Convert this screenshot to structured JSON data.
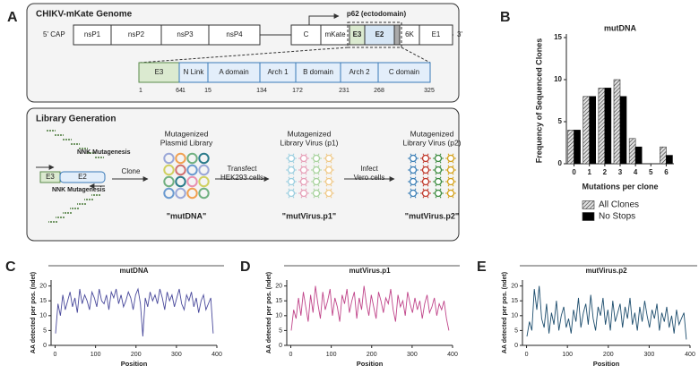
{
  "panel_labels": [
    "A"
  ],
  "genome": {
    "title": "CHIKV-mKate Genome",
    "region": "p62 (ectodomain)",
    "cap": "5' CAP",
    "end": "3'",
    "genes": [
      "nsP1",
      "nsP2",
      "nsP3",
      "nsP4",
      "C",
      "mKate",
      "E3",
      "E2",
      "6K",
      "E1"
    ]
  },
  "domains": {
    "labels": [
      "E3",
      "N Link",
      "A domain",
      "Arch 1",
      "B domain",
      "Arch 2",
      "C domain"
    ],
    "positions": [
      1,
      64,
      1,
      15,
      134,
      172,
      231,
      268,
      325
    ]
  },
  "library": {
    "title": "Library Generation",
    "primer_top": "NNK Mutagenesis",
    "primer_bottom": "NNK Mutagenesis",
    "segments": [
      "E3",
      "E2"
    ],
    "steps": [
      [
        "Clone"
      ],
      [
        "Transfect",
        "HEK293 cells"
      ],
      [
        "Infect",
        "Vero cells"
      ]
    ],
    "libraries": [
      {
        "title": [
          "Mutagenized",
          "Plasmid Library"
        ],
        "name": "\"mutDNA\""
      },
      {
        "title": [
          "Mutagenized",
          "Library Virus (p1)"
        ],
        "name": "\"mutVirus.p1\""
      },
      {
        "title": [
          "Mutagenized",
          "Library Virus (p2)"
        ],
        "name": "\"mutVirus.p2\""
      }
    ]
  },
  "chart_data": [
    {
      "panel": "B",
      "type": "bar",
      "title": "mutDNA",
      "xlabel": "Mutations per clone",
      "ylabel": "Frequency of Sequenced Clones",
      "categories": [
        "0",
        "1",
        "2",
        "3",
        "4",
        "5",
        "6"
      ],
      "series": [
        {
          "name": "All Clones",
          "color": "#888888",
          "hatch": true,
          "values": [
            4,
            8,
            9,
            10,
            3,
            0,
            2
          ]
        },
        {
          "name": "No Stops",
          "color": "#000000",
          "values": [
            4,
            8,
            9,
            8,
            2,
            0,
            1
          ]
        }
      ],
      "ylim": [
        0,
        15
      ],
      "yticks": [
        0,
        5,
        10,
        15
      ],
      "legend": "bottom"
    },
    {
      "panel": "C",
      "type": "line",
      "title": "mutDNA",
      "xlabel": "Position",
      "ylabel": "AA detected per pos. (ndet)",
      "color": "#4a4a9c",
      "x": [
        1,
        7,
        13,
        19,
        25,
        31,
        37,
        43,
        49,
        55,
        61,
        67,
        73,
        79,
        85,
        91,
        97,
        103,
        109,
        115,
        121,
        127,
        133,
        139,
        145,
        151,
        157,
        163,
        169,
        175,
        181,
        187,
        193,
        199,
        205,
        211,
        217,
        223,
        229,
        235,
        241,
        247,
        253,
        259,
        265,
        271,
        277,
        283,
        289,
        295,
        301,
        307,
        313,
        319,
        325,
        331,
        337,
        343,
        349,
        355,
        361,
        367,
        373,
        379,
        385,
        391
      ],
      "values": [
        4,
        14,
        10,
        17,
        12,
        15,
        18,
        13,
        16,
        11,
        19,
        14,
        17,
        15,
        12,
        18,
        16,
        13,
        19,
        15,
        14,
        17,
        12,
        18,
        16,
        19,
        14,
        17,
        13,
        15,
        18,
        16,
        12,
        17,
        19,
        14,
        3,
        16,
        13,
        18,
        15,
        17,
        14,
        19,
        16,
        12,
        18,
        15,
        17,
        13,
        16,
        19,
        14,
        12,
        17,
        15,
        18,
        13,
        16,
        11,
        15,
        17,
        12,
        14,
        16,
        4
      ],
      "xlim": [
        -10,
        400
      ],
      "ylim": [
        0,
        22
      ],
      "xticks": [
        0,
        100,
        200,
        300,
        400
      ],
      "yticks": [
        0,
        5,
        10,
        15,
        20
      ]
    },
    {
      "panel": "D",
      "type": "line",
      "title": "mutVirus.p1",
      "xlabel": "Position",
      "ylabel": "AA detected per pos. (ndet)",
      "color": "#c0458a",
      "x": [
        1,
        7,
        13,
        19,
        25,
        31,
        37,
        43,
        49,
        55,
        61,
        67,
        73,
        79,
        85,
        91,
        97,
        103,
        109,
        115,
        121,
        127,
        133,
        139,
        145,
        151,
        157,
        163,
        169,
        175,
        181,
        187,
        193,
        199,
        205,
        211,
        217,
        223,
        229,
        235,
        241,
        247,
        253,
        259,
        265,
        271,
        277,
        283,
        289,
        295,
        301,
        307,
        313,
        319,
        325,
        331,
        337,
        343,
        349,
        355,
        361,
        367,
        373,
        379,
        385,
        391
      ],
      "values": [
        5,
        12,
        9,
        16,
        10,
        18,
        13,
        8,
        17,
        11,
        20,
        14,
        9,
        18,
        12,
        15,
        19,
        10,
        16,
        13,
        8,
        17,
        14,
        19,
        11,
        15,
        18,
        9,
        16,
        12,
        20,
        14,
        10,
        17,
        13,
        9,
        18,
        15,
        11,
        16,
        14,
        19,
        12,
        8,
        17,
        13,
        15,
        10,
        18,
        14,
        11,
        16,
        12,
        15,
        9,
        14,
        17,
        11,
        13,
        16,
        10,
        14,
        12,
        15,
        9,
        5
      ],
      "xlim": [
        -10,
        400
      ],
      "ylim": [
        0,
        22
      ],
      "xticks": [
        0,
        100,
        200,
        300,
        400
      ],
      "yticks": [
        0,
        5,
        10,
        15,
        20
      ]
    },
    {
      "panel": "E",
      "type": "line",
      "title": "mutVirus.p2",
      "xlabel": "Position",
      "ylabel": "AA detected per pos. (ndet)",
      "color": "#1e4e6e",
      "x": [
        1,
        7,
        13,
        19,
        25,
        31,
        37,
        43,
        49,
        55,
        61,
        67,
        73,
        79,
        85,
        91,
        97,
        103,
        109,
        115,
        121,
        127,
        133,
        139,
        145,
        151,
        157,
        163,
        169,
        175,
        181,
        187,
        193,
        199,
        205,
        211,
        217,
        223,
        229,
        235,
        241,
        247,
        253,
        259,
        265,
        271,
        277,
        283,
        289,
        295,
        301,
        307,
        313,
        319,
        325,
        331,
        337,
        343,
        349,
        355,
        361,
        367,
        373,
        379,
        385,
        391
      ],
      "values": [
        3,
        8,
        5,
        19,
        12,
        20,
        9,
        6,
        14,
        4,
        11,
        7,
        15,
        5,
        10,
        13,
        6,
        9,
        4,
        12,
        8,
        16,
        6,
        11,
        14,
        7,
        17,
        9,
        5,
        13,
        10,
        16,
        7,
        12,
        5,
        15,
        8,
        11,
        14,
        6,
        13,
        9,
        16,
        7,
        11,
        5,
        13,
        8,
        15,
        10,
        6,
        12,
        9,
        14,
        5,
        11,
        8,
        13,
        6,
        10,
        4,
        12,
        7,
        9,
        11,
        2
      ],
      "xlim": [
        -10,
        400
      ],
      "ylim": [
        0,
        22
      ],
      "xticks": [
        0,
        100,
        200,
        300,
        400
      ],
      "yticks": [
        0,
        5,
        10,
        15,
        20
      ]
    }
  ]
}
